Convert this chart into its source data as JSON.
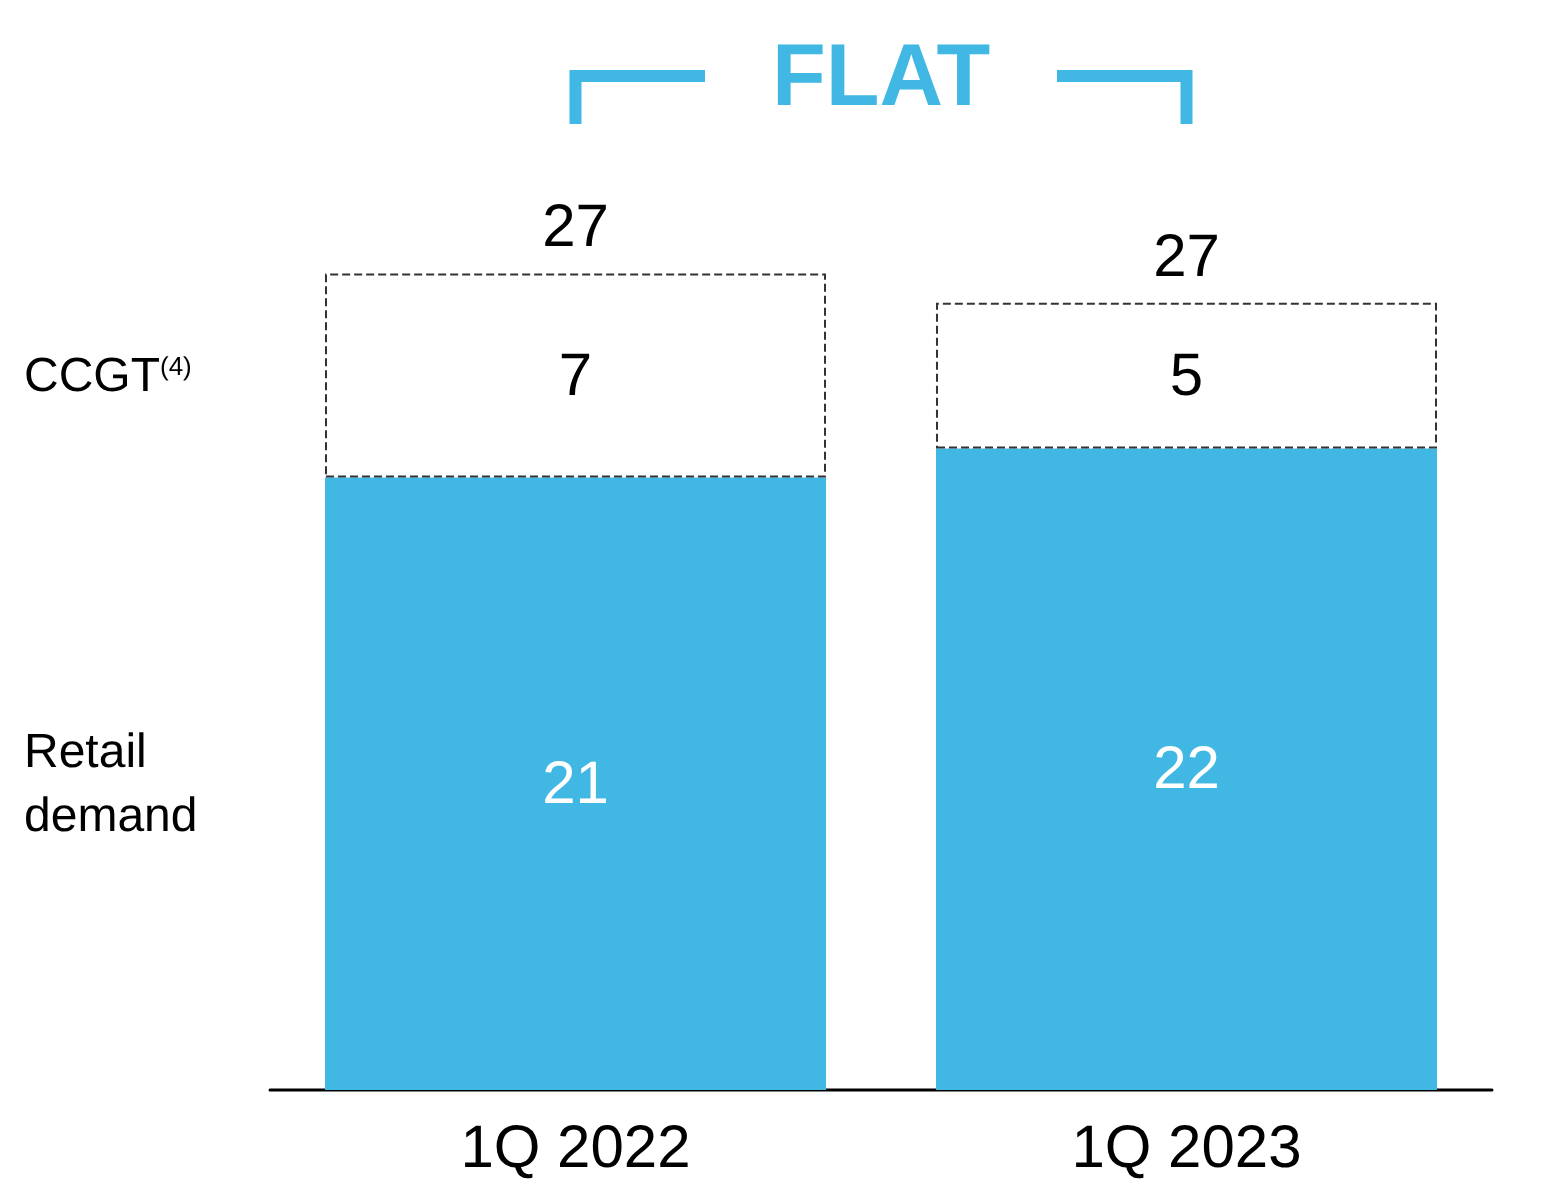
{
  "chart_data": {
    "type": "bar",
    "stacked": true,
    "categories": [
      "1Q 2022",
      "1Q 2023"
    ],
    "series": [
      {
        "name": "Retail demand",
        "color": "#41b8e4",
        "values": [
          21,
          22
        ]
      },
      {
        "name": "CCGT$^{(4)}$",
        "color": "#ffffff",
        "values": [
          7,
          5
        ]
      }
    ],
    "data_labels": true,
    "totals": [
      "27",
      "27"
    ],
    "annotations": [
      "FLAT"
    ],
    "legend": false
  }
}
